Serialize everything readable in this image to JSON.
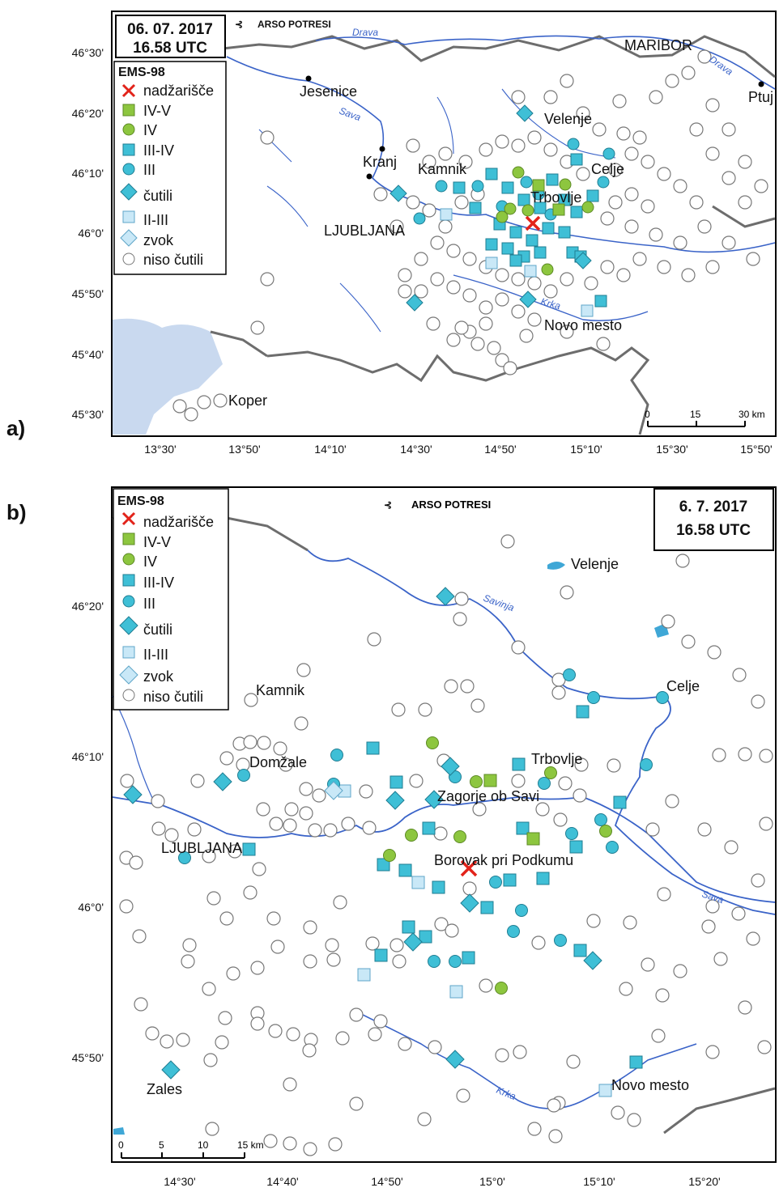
{
  "panel_labels": {
    "a": "a)",
    "b": "b)"
  },
  "map_a": {
    "date": "06. 07. 2017",
    "time": "16.58 UTC",
    "logo": "ARSO POTRESI",
    "legend_title": "EMS-98",
    "legend": [
      "nadžarišče",
      "IV-V",
      "IV",
      "III-IV",
      "III",
      "čutili",
      "II-III",
      "zvok",
      "niso čutili"
    ],
    "cities": [
      "MARIBOR",
      "Jesenice",
      "Ptuj",
      "Velenje",
      "Kranj",
      "Kamnik",
      "Celje",
      "Trbovlje",
      "LJUBLJANA",
      "Novo mesto",
      "Koper"
    ],
    "rivers": [
      "Drava",
      "Drava",
      "Sava",
      "Krka"
    ],
    "lat_ticks": [
      "46°30'",
      "46°20'",
      "46°10'",
      "46°0'",
      "45°50'",
      "45°40'",
      "45°30'"
    ],
    "lon_ticks": [
      "13°30'",
      "13°50'",
      "14°10'",
      "14°30'",
      "14°50'",
      "15°10'",
      "15°30'",
      "15°50'"
    ],
    "scale": [
      "0",
      "15",
      "30 km"
    ]
  },
  "map_b": {
    "date": "6. 7. 2017",
    "time": "16.58 UTC",
    "logo": "ARSO POTRESI",
    "legend_title": "EMS-98",
    "legend": [
      "nadžarišče",
      "IV-V",
      "IV",
      "III-IV",
      "III",
      "čutili",
      "II-III",
      "zvok",
      "niso čutili"
    ],
    "cities": [
      "Velenje",
      "Celje",
      "Kamnik",
      "Domžale",
      "Trbovlje",
      "Zagorje ob Savi",
      "LJUBLJANA",
      "Borovak pri Podkumu",
      "Zales",
      "Novo mesto"
    ],
    "rivers": [
      "Savinja",
      "Sava",
      "Krka"
    ],
    "lat_ticks": [
      "46°20'",
      "46°10'",
      "46°0'",
      "45°50'"
    ],
    "lon_ticks": [
      "14°30'",
      "14°40'",
      "14°50'",
      "15°0'",
      "15°10'",
      "15°20'"
    ],
    "scale": [
      "0",
      "5",
      "10",
      "15 km"
    ]
  },
  "colors": {
    "green": "#8dc63f",
    "cyan": "#3fbfd6",
    "lightblue": "#c9e8f7",
    "epicenter": "#e2231a",
    "river": "#3a63c8",
    "border": "#6d6d6d",
    "sea": "#c9d9ef"
  }
}
